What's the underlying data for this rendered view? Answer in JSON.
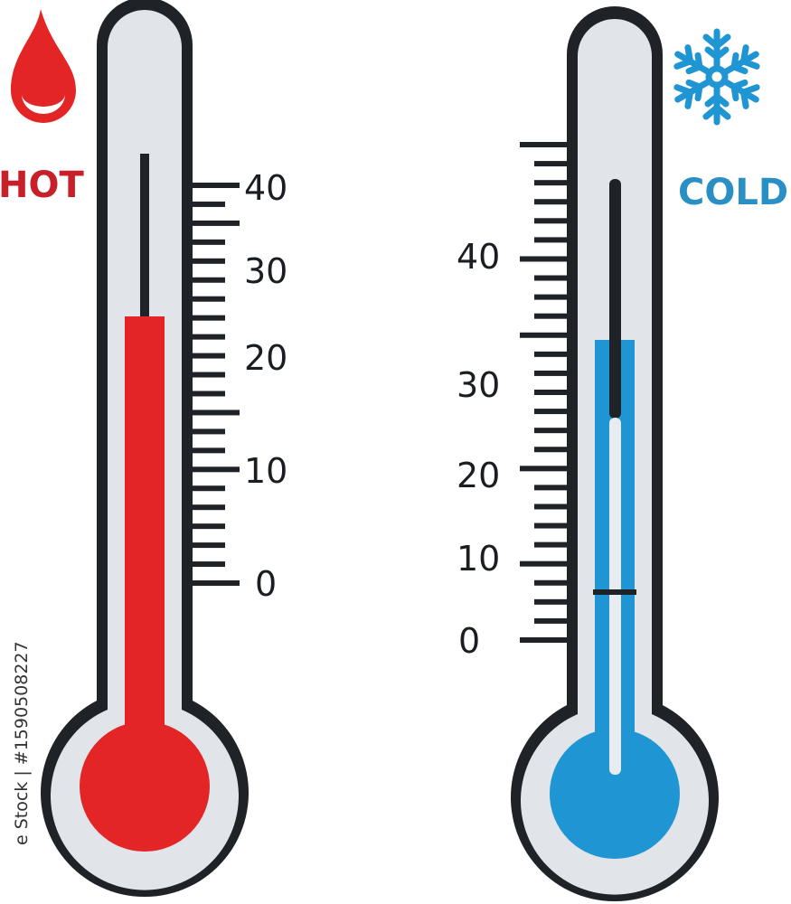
{
  "hot": {
    "label": "HOT",
    "icon": "flame-drop-icon",
    "scale_labels": [
      "40",
      "30",
      "20",
      "10",
      "0"
    ],
    "color": "#e32526"
  },
  "cold": {
    "label": "COLD",
    "icon": "snowflake-icon",
    "scale_labels": [
      "40",
      "30",
      "20",
      "10",
      "0"
    ],
    "color": "#1f96d3"
  },
  "watermark": "e Stock | #1590508227"
}
